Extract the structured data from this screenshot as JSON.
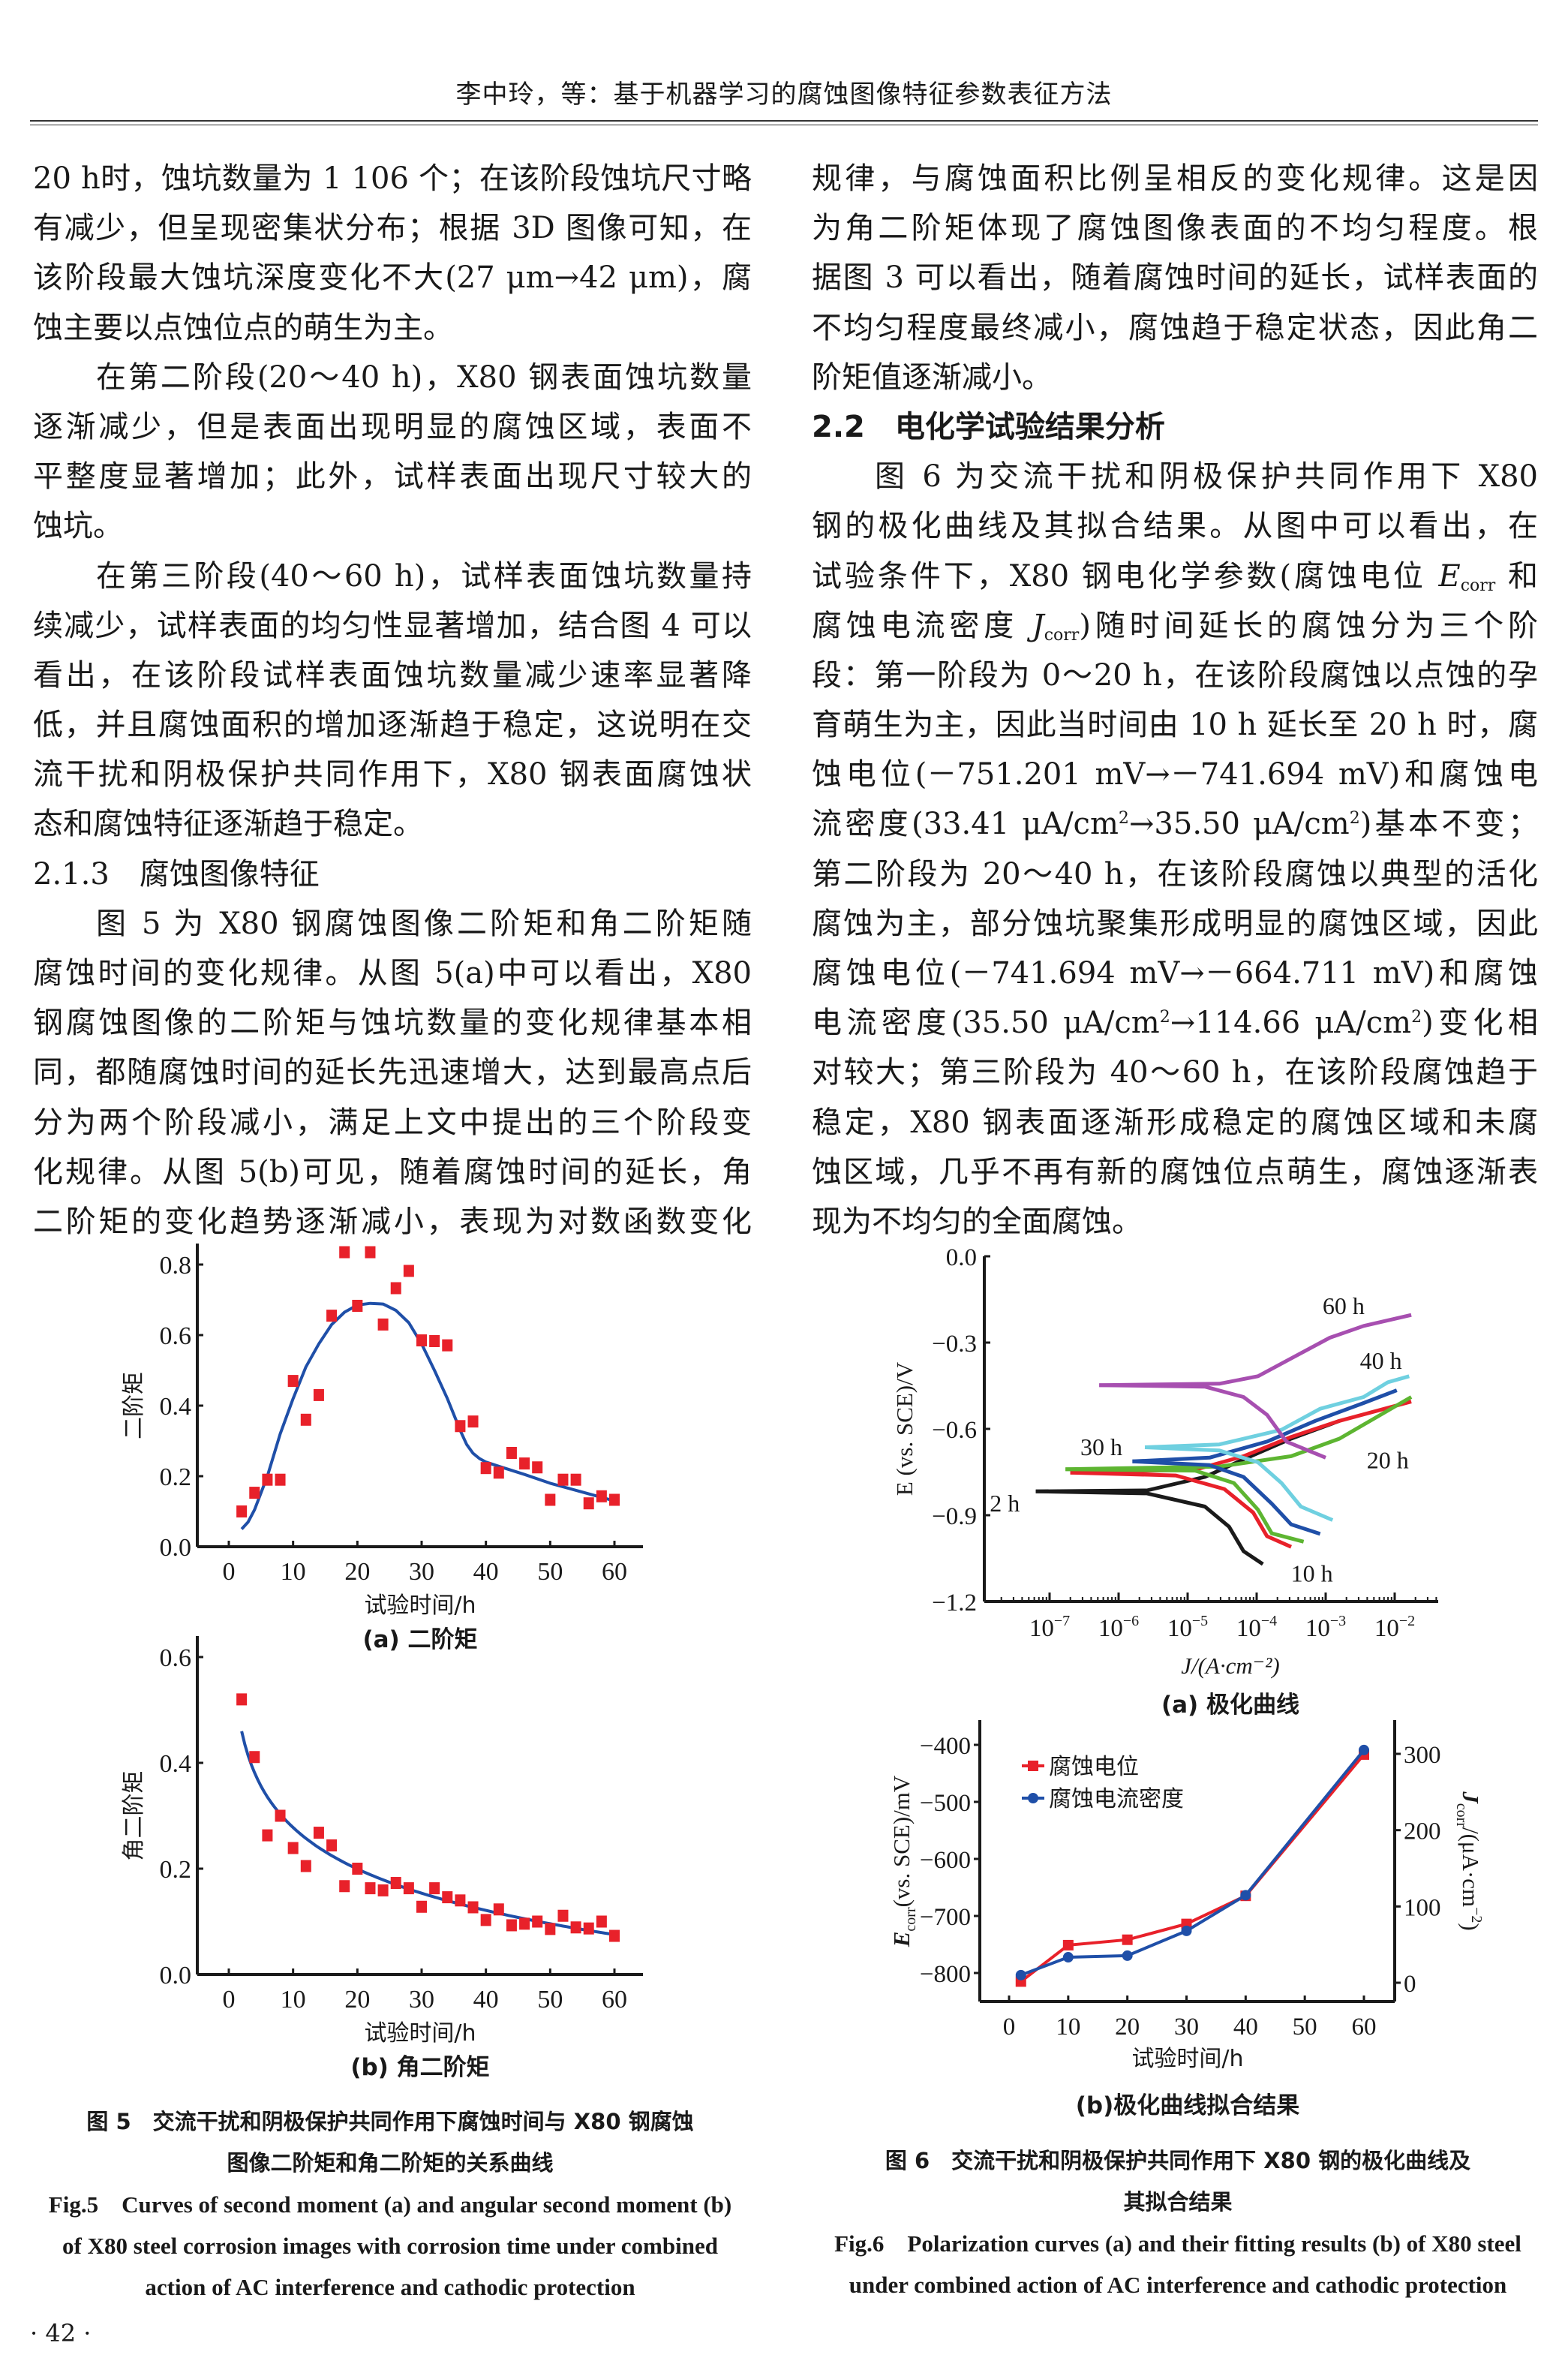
{
  "header": {
    "title": "李中玲，等：基于机器学习的腐蚀图像特征参数表征方法"
  },
  "left_column": [
    {
      "type": "cont",
      "lines": [
        "20 h时，蚀坑数量为 1 106 个；在该阶段蚀坑尺寸略",
        "有减少，但呈现密集状分布；根据 3D 图像可知，在",
        "该阶段最大蚀坑深度变化不大(27 μm→42 μm)，腐",
        "蚀主要以点蚀位点的萌生为主。"
      ]
    },
    {
      "type": "p",
      "lines": [
        "在第二阶段(20～40 h)，X80 钢表面蚀坑数量",
        "逐渐减少，但是表面出现明显的腐蚀区域，表面不",
        "平整度显著增加；此外，试样表面出现尺寸较大的",
        "蚀坑。"
      ]
    },
    {
      "type": "p",
      "lines": [
        "在第三阶段(40～60 h)，试样表面蚀坑数量持",
        "续减少，试样表面的均匀性显著增加，结合图 4 可以",
        "看出，在该阶段试样表面蚀坑数量减少速率显著降",
        "低，并且腐蚀面积的增加逐渐趋于稳定，这说明在交",
        "流干扰和阴极保护共同作用下，X80 钢表面腐蚀状",
        "态和腐蚀特征逐渐趋于稳定。"
      ]
    },
    {
      "type": "h3",
      "lines": [
        "2.1.3　腐蚀图像特征"
      ]
    },
    {
      "type": "p",
      "open": true,
      "lines": [
        "图 5 为 X80 钢腐蚀图像二阶矩和角二阶矩随",
        "腐蚀时间的变化规律。从图 5(a)中可以看出，X80",
        "钢腐蚀图像的二阶矩与蚀坑数量的变化规律基本相",
        "同，都随腐蚀时间的延长先迅速增大，达到最高点后",
        "分为两个阶段减小，满足上文中提出的三个阶段变",
        "化规律。从图 5(b)可见，随着腐蚀时间的延长，角",
        "二阶矩的变化趋势逐渐减小，表现为对数函数变化"
      ]
    }
  ],
  "right_column": [
    {
      "type": "cont",
      "lines": [
        "规律，与腐蚀面积比例呈相反的变化规律。这是因",
        "为角二阶矩体现了腐蚀图像表面的不均匀程度。根",
        "据图 3 可以看出，随着腐蚀时间的延长，试样表面的",
        "不均匀程度最终减小，腐蚀趋于稳定状态，因此角二",
        "阶矩值逐渐减小。"
      ]
    },
    {
      "type": "h2",
      "lines": [
        "2.2　电化学试验结果分析"
      ]
    },
    {
      "type": "p",
      "lines": [
        "图 6 为交流干扰和阴极保护共同作用下 X80",
        "钢的极化曲线及其拟合结果。从图中可以看出，在",
        [
          {
            "t": "试验条件下，X80 钢电化学参数(腐蚀电位 "
          },
          {
            "t": "E",
            "i": true
          },
          {
            "t": "corr",
            "sub": true
          },
          {
            "t": " 和"
          }
        ],
        [
          {
            "t": "腐蚀电流密度 "
          },
          {
            "t": "J",
            "i": true
          },
          {
            "t": "corr",
            "sub": true
          },
          {
            "t": ")随时间延长的腐蚀分为三个阶"
          }
        ],
        "段：第一阶段为 0～20 h，在该阶段腐蚀以点蚀的孕",
        "育萌生为主，因此当时间由 10 h 延长至 20 h 时，腐",
        "蚀电位(－751.201 mV→－741.694 mV)和腐蚀电",
        [
          {
            "t": "流密度(33.41 μA/cm"
          },
          {
            "t": "2",
            "sup": true
          },
          {
            "t": "→35.50 μA/cm"
          },
          {
            "t": "2",
            "sup": true
          },
          {
            "t": ")基本不变；"
          }
        ],
        "第二阶段为 20～40 h，在该阶段腐蚀以典型的活化",
        "腐蚀为主，部分蚀坑聚集形成明显的腐蚀区域，因此",
        "腐蚀电位(－741.694 mV→－664.711 mV)和腐蚀",
        [
          {
            "t": "电流密度(35.50 μA/cm"
          },
          {
            "t": "2",
            "sup": true
          },
          {
            "t": "→114.66 μA/cm"
          },
          {
            "t": "2",
            "sup": true
          },
          {
            "t": ")变化相"
          }
        ],
        "对较大；第三阶段为 40～60 h，在该阶段腐蚀趋于",
        "稳定，X80 钢表面逐渐形成稳定的腐蚀区域和未腐",
        "蚀区域，几乎不再有新的腐蚀位点萌生，腐蚀逐渐表",
        "现为不均匀的全面腐蚀。"
      ]
    }
  ],
  "fig5": {
    "caption_cn": [
      "图 5　交流干扰和阴极保护共同作用下腐蚀时间与 X80 钢腐蚀",
      "图像二阶矩和角二阶矩的关系曲线"
    ],
    "caption_en": [
      "Fig.5　Curves of second moment (a) and angular second moment (b)",
      "of X80 steel corrosion images with corrosion time under combined",
      "action of AC interference and cathodic protection"
    ]
  },
  "fig6": {
    "caption_cn": [
      "图 6　交流干扰和阴极保护共同作用下 X80 钢的极化曲线及",
      "其拟合结果"
    ],
    "caption_en": [
      "Fig.6　Polarization curves (a) and their fitting results (b) of X80 steel",
      "under combined action of AC interference and cathodic protection"
    ]
  },
  "footer": {
    "page": "· 42 ·"
  },
  "chart_data": [
    {
      "type": "scatter",
      "title": "(a) 二阶矩",
      "xlabel": "试验时间/h",
      "ylabel": "二阶矩",
      "xlim": [
        0,
        60
      ],
      "ylim": [
        0,
        0.8
      ],
      "xticks": [
        "0",
        "10",
        "20",
        "30",
        "40",
        "50",
        "60"
      ],
      "yticks": [
        "0.0",
        "0.2",
        "0.4",
        "0.6",
        "0.8"
      ],
      "marker_color": "#e8212a",
      "line_color": "#1f4fa8",
      "x": [
        2,
        4,
        6,
        8,
        10,
        12,
        14,
        16,
        18,
        20,
        22,
        24,
        26,
        28,
        30,
        32,
        34,
        36,
        38,
        40,
        42,
        44,
        46,
        48,
        50,
        52,
        54,
        56,
        58,
        60
      ],
      "y": [
        0.1,
        0.153,
        0.19,
        0.19,
        0.47,
        0.36,
        0.43,
        0.655,
        0.835,
        0.683,
        0.835,
        0.63,
        0.733,
        0.782,
        0.585,
        0.583,
        0.571,
        0.342,
        0.355,
        0.223,
        0.21,
        0.266,
        0.236,
        0.225,
        0.133,
        0.19,
        0.19,
        0.123,
        0.143,
        0.133
      ],
      "fit_x": [
        2,
        3,
        4,
        6,
        8,
        10,
        12,
        14,
        16,
        18,
        20,
        22,
        24,
        26,
        28,
        30,
        32,
        34,
        36,
        37,
        38,
        39,
        40,
        42,
        46,
        50,
        55,
        60
      ],
      "fit_y": [
        0.05,
        0.07,
        0.105,
        0.2,
        0.32,
        0.42,
        0.51,
        0.575,
        0.63,
        0.665,
        0.685,
        0.69,
        0.688,
        0.67,
        0.635,
        0.575,
        0.5,
        0.42,
        0.33,
        0.29,
        0.265,
        0.25,
        0.24,
        0.228,
        0.205,
        0.18,
        0.155,
        0.13
      ]
    },
    {
      "type": "scatter",
      "title": "(b) 角二阶矩",
      "xlabel": "试验时间/h",
      "ylabel": "角二阶矩",
      "xlim": [
        0,
        60
      ],
      "ylim": [
        0,
        0.6
      ],
      "xticks": [
        "0",
        "10",
        "20",
        "30",
        "40",
        "50",
        "60"
      ],
      "yticks": [
        "0.0",
        "0.2",
        "0.4",
        "0.6"
      ],
      "marker_color": "#e8212a",
      "line_color": "#1f4fa8",
      "x": [
        2,
        4,
        6,
        8,
        10,
        12,
        14,
        16,
        18,
        20,
        22,
        24,
        26,
        28,
        30,
        32,
        34,
        36,
        38,
        40,
        42,
        44,
        46,
        48,
        50,
        52,
        54,
        56,
        58,
        60
      ],
      "y": [
        0.52,
        0.411,
        0.263,
        0.3,
        0.239,
        0.205,
        0.268,
        0.244,
        0.167,
        0.2,
        0.163,
        0.159,
        0.173,
        0.163,
        0.128,
        0.163,
        0.146,
        0.14,
        0.127,
        0.103,
        0.123,
        0.093,
        0.096,
        0.1,
        0.086,
        0.111,
        0.089,
        0.087,
        0.1,
        0.073
      ],
      "fit": {
        "model": "y = a - b*ln(x)",
        "a": 0.538,
        "b": 0.113,
        "x_range": [
          2,
          60
        ]
      }
    },
    {
      "type": "line",
      "title": "(a) 极化曲线",
      "xlabel": "J/(A·cm⁻²)",
      "ylabel": "E (vs. SCE)/V",
      "xscale": "log",
      "xlim_log10": [
        -7.95,
        -1.37
      ],
      "ylim": [
        -1.2,
        0.0
      ],
      "xticks": [
        {
          "base": "10",
          "exp": "−7"
        },
        {
          "base": "10",
          "exp": "−6"
        },
        {
          "base": "10",
          "exp": "−5"
        },
        {
          "base": "10",
          "exp": "−4"
        },
        {
          "base": "10",
          "exp": "−3"
        },
        {
          "base": "10",
          "exp": "−2"
        }
      ],
      "yticks": [
        "0.0",
        "−0.3",
        "−0.6",
        "−0.9",
        "−1.2"
      ],
      "series": [
        {
          "name": "2 h",
          "color": "#1a1a1a",
          "label_at": [
            -7.65,
            -0.855
          ],
          "cathodic": [
            [
              -7.2,
              -0.817
            ],
            [
              -5.59,
              -0.824
            ],
            [
              -4.75,
              -0.87
            ],
            [
              -4.4,
              -0.94
            ],
            [
              -4.19,
              -1.025
            ],
            [
              -3.91,
              -1.07
            ]
          ],
          "anodic": [
            [
              -7.2,
              -0.817
            ],
            [
              -5.59,
              -0.814
            ],
            [
              -4.75,
              -0.767
            ],
            [
              -4.19,
              -0.706
            ],
            [
              -3.5,
              -0.634
            ],
            [
              -2.8,
              -0.572
            ]
          ]
        },
        {
          "name": "10 h",
          "color": "#e8212a",
          "label_at": [
            -3.2,
            -1.1
          ],
          "cathodic": [
            [
              -6.7,
              -0.752
            ],
            [
              -5.17,
              -0.762
            ],
            [
              -4.47,
              -0.809
            ],
            [
              -4.05,
              -0.891
            ],
            [
              -3.85,
              -0.973
            ],
            [
              -3.5,
              -1.01
            ]
          ],
          "anodic": [
            [
              -6.7,
              -0.752
            ],
            [
              -4.89,
              -0.742
            ],
            [
              -4.19,
              -0.695
            ],
            [
              -3.5,
              -0.628
            ],
            [
              -2.8,
              -0.572
            ],
            [
              -1.76,
              -0.505
            ]
          ]
        },
        {
          "name": "20 h",
          "color": "#5db531",
          "label_at": [
            -2.1,
            -0.705
          ],
          "cathodic": [
            [
              -6.77,
              -0.74
            ],
            [
              -4.89,
              -0.745
            ],
            [
              -4.33,
              -0.788
            ],
            [
              -3.98,
              -0.881
            ],
            [
              -3.78,
              -0.963
            ],
            [
              -3.32,
              -0.992
            ]
          ],
          "anodic": [
            [
              -6.77,
              -0.74
            ],
            [
              -4.54,
              -0.731
            ],
            [
              -3.5,
              -0.695
            ],
            [
              -2.8,
              -0.634
            ],
            [
              -1.76,
              -0.489
            ]
          ]
        },
        {
          "name": "30 h",
          "color": "#1f4fa8",
          "label_at": [
            -6.25,
            -0.66
          ],
          "cathodic": [
            [
              -5.8,
              -0.713
            ],
            [
              -4.68,
              -0.726
            ],
            [
              -4.19,
              -0.767
            ],
            [
              -3.78,
              -0.86
            ],
            [
              -3.5,
              -0.932
            ],
            [
              -3.08,
              -0.965
            ]
          ],
          "anodic": [
            [
              -5.8,
              -0.713
            ],
            [
              -4.68,
              -0.7
            ],
            [
              -3.85,
              -0.644
            ],
            [
              -3.15,
              -0.572
            ],
            [
              -2.45,
              -0.51
            ],
            [
              -1.97,
              -0.466
            ]
          ]
        },
        {
          "name": "40 h",
          "color": "#6fd0e0",
          "label_at": [
            -2.2,
            -0.36
          ],
          "cathodic": [
            [
              -5.62,
              -0.664
            ],
            [
              -4.54,
              -0.675
            ],
            [
              -3.98,
              -0.716
            ],
            [
              -3.64,
              -0.788
            ],
            [
              -3.36,
              -0.87
            ],
            [
              -2.9,
              -0.917
            ]
          ],
          "anodic": [
            [
              -5.62,
              -0.664
            ],
            [
              -4.54,
              -0.654
            ],
            [
              -3.64,
              -0.603
            ],
            [
              -3.08,
              -0.53
            ],
            [
              -2.45,
              -0.489
            ],
            [
              -2.1,
              -0.438
            ],
            [
              -1.79,
              -0.417
            ]
          ]
        },
        {
          "name": "60 h",
          "color": "#a74fb0",
          "label_at": [
            -2.74,
            -0.17
          ],
          "cathodic": [
            [
              -6.28,
              -0.448
            ],
            [
              -4.75,
              -0.453
            ],
            [
              -4.19,
              -0.489
            ],
            [
              -3.85,
              -0.551
            ],
            [
              -3.57,
              -0.644
            ],
            [
              -3.0,
              -0.7
            ]
          ],
          "anodic": [
            [
              -6.28,
              -0.448
            ],
            [
              -4.54,
              -0.443
            ],
            [
              -3.98,
              -0.417
            ],
            [
              -3.5,
              -0.355
            ],
            [
              -2.94,
              -0.283
            ],
            [
              -2.45,
              -0.242
            ],
            [
              -1.76,
              -0.204
            ]
          ]
        }
      ]
    },
    {
      "type": "line",
      "title": "(b)极化曲线拟合结果",
      "xlabel": "试验时间/h",
      "ylabel_left": {
        "main": "E",
        "sub": "corr",
        "rest": "(vs. SCE)/mV"
      },
      "ylabel_right": {
        "main": "J",
        "sub": "corr",
        "rest": "/(μA·cm",
        "sup": "−2",
        "end": ")"
      },
      "xlim": [
        -4,
        64
      ],
      "ylim_left": [
        -855,
        -375
      ],
      "ylim_right": [
        -25,
        330
      ],
      "xticks": [
        "0",
        "10",
        "20",
        "30",
        "40",
        "50",
        "60"
      ],
      "yticks_left": [
        "−400",
        "−500",
        "−600",
        "−700",
        "−800"
      ],
      "yticks_right": [
        "300",
        "200",
        "100",
        "0"
      ],
      "legend_position": "top-left",
      "x": [
        2,
        10,
        20,
        30,
        40,
        60
      ],
      "series": [
        {
          "name": "腐蚀电位",
          "axis": "left",
          "marker": "square",
          "color": "#e8212a",
          "values": [
            -815,
            -751.201,
            -741.694,
            -714,
            -664.711,
            -417
          ]
        },
        {
          "name": "腐蚀电流密度",
          "axis": "right",
          "marker": "circle",
          "color": "#1f4fa8",
          "values": [
            10,
            33.41,
            35.5,
            68,
            114.66,
            305
          ]
        }
      ]
    }
  ]
}
